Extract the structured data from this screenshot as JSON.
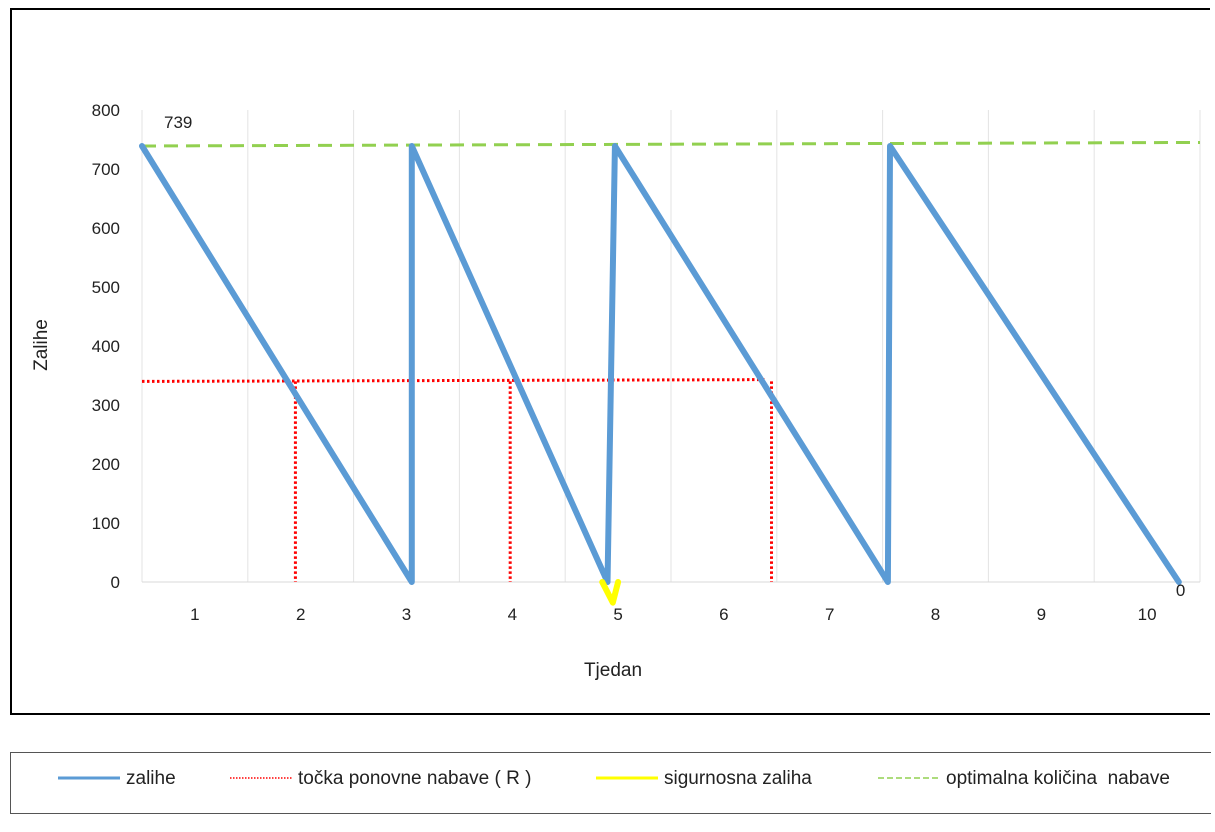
{
  "chart_data": {
    "type": "line",
    "xlabel": "Tjedan",
    "ylabel": "Zalihe",
    "x_ticks": [
      1,
      2,
      3,
      4,
      5,
      6,
      7,
      8,
      9,
      10
    ],
    "y_ticks": [
      0,
      100,
      200,
      300,
      400,
      500,
      600,
      700,
      800
    ],
    "xlim": [
      0.5,
      10.5
    ],
    "ylim": [
      0,
      800
    ],
    "grid": "vertical",
    "legend_position": "bottom",
    "series": [
      {
        "name": "zalihe",
        "color": "#5B9BD5",
        "style": "solid",
        "points": [
          [
            0.5,
            739
          ],
          [
            3.05,
            0
          ],
          [
            3.05,
            739
          ],
          [
            4.9,
            0
          ],
          [
            4.97,
            739
          ],
          [
            7.55,
            0
          ],
          [
            7.57,
            739
          ],
          [
            10.3,
            0
          ]
        ]
      },
      {
        "name": "točka ponovne nabave ( R )",
        "color": "#FF0000",
        "style": "dotted",
        "segments": [
          [
            [
              0.5,
              340
            ],
            [
              6.4,
              343
            ]
          ],
          [
            [
              1.95,
              340
            ],
            [
              1.95,
              0
            ]
          ],
          [
            [
              3.98,
              340
            ],
            [
              3.98,
              0
            ]
          ],
          [
            [
              6.45,
              340
            ],
            [
              6.45,
              0
            ]
          ]
        ]
      },
      {
        "name": "sigurnosna zaliha",
        "color": "#FFFF00",
        "style": "solid",
        "points": [
          [
            4.85,
            0
          ],
          [
            4.95,
            -35
          ],
          [
            5.0,
            0
          ]
        ]
      },
      {
        "name": "optimalna količina  nabave",
        "color": "#92D050",
        "style": "dashed",
        "points": [
          [
            0.5,
            739
          ],
          [
            10.5,
            745
          ]
        ]
      }
    ],
    "data_labels": [
      {
        "x": 0.5,
        "y": 739,
        "text": "739"
      },
      {
        "x": 10.3,
        "y": 0,
        "text": "0"
      }
    ]
  }
}
